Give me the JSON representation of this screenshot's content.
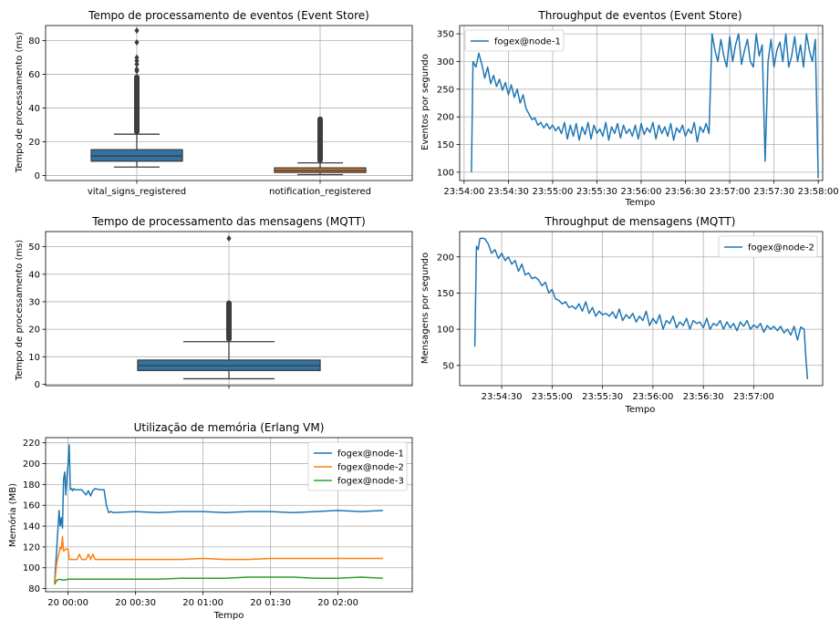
{
  "colors": {
    "blue": "#1f77b4",
    "orange": "#ff7f0e",
    "green": "#2ca02c",
    "box_blue": "#3274a1",
    "box_orange": "#e1812c"
  },
  "chart_data": [
    {
      "id": "c1",
      "type": "box",
      "title": "Tempo de processamento de eventos (Event Store)",
      "xlabel": "",
      "ylabel": "Tempo de processamento (ms)",
      "ylim": [
        -3,
        89
      ],
      "yticks": [
        0,
        20,
        40,
        60,
        80
      ],
      "categories": [
        "vital_signs_registered",
        "notification_registered"
      ],
      "boxes": [
        {
          "q1": 8.5,
          "median": 11.5,
          "q3": 15.3,
          "whislo": 5,
          "whishi": 24.5,
          "outlier_from": 24.5,
          "outlier_to": 60,
          "fliers": [
            62,
            63,
            66,
            68,
            70,
            79,
            86
          ],
          "color": "box_blue"
        },
        {
          "q1": 1.8,
          "median": 3.0,
          "q3": 4.5,
          "whislo": 0.5,
          "whishi": 7.5,
          "outlier_from": 7.5,
          "outlier_to": 35,
          "fliers": [],
          "color": "box_orange"
        }
      ]
    },
    {
      "id": "c2",
      "type": "line",
      "title": "Throughput de eventos (Event Store)",
      "xlabel": "Tempo",
      "ylabel": "Eventos por segundo",
      "xticks": [
        "23:54:00",
        "23:54:30",
        "23:55:00",
        "23:55:30",
        "23:56:00",
        "23:56:30",
        "23:57:00",
        "23:57:30",
        "23:58:00"
      ],
      "xrange": [
        -3,
        243
      ],
      "ylim": [
        85,
        365
      ],
      "yticks": [
        100,
        150,
        200,
        250,
        300,
        350
      ],
      "legend": "top-left",
      "series": [
        {
          "name": "fogex@node-1",
          "color": "blue",
          "x": [
            5,
            6,
            8,
            10,
            12,
            14,
            16,
            18,
            20,
            22,
            24,
            26,
            28,
            30,
            32,
            34,
            36,
            38,
            40,
            42,
            44,
            46,
            48,
            50,
            52,
            54,
            56,
            58,
            60,
            62,
            64,
            66,
            68,
            70,
            72,
            74,
            76,
            78,
            80,
            82,
            84,
            86,
            88,
            90,
            92,
            94,
            96,
            98,
            100,
            102,
            104,
            106,
            108,
            110,
            112,
            114,
            116,
            118,
            120,
            122,
            124,
            126,
            128,
            130,
            132,
            134,
            136,
            138,
            140,
            142,
            144,
            146,
            148,
            150,
            152,
            154,
            156,
            158,
            160,
            162,
            164,
            166,
            168,
            170,
            172,
            174,
            176,
            178,
            180,
            182,
            184,
            186,
            188,
            190,
            192,
            194,
            196,
            198,
            200,
            202,
            204,
            206,
            208,
            210,
            212,
            214,
            216,
            218,
            220,
            222,
            224,
            226,
            228,
            230,
            232,
            234,
            236,
            238,
            240
          ],
          "y": [
            100,
            300,
            290,
            315,
            295,
            270,
            290,
            260,
            275,
            255,
            268,
            248,
            262,
            240,
            258,
            235,
            250,
            225,
            240,
            215,
            205,
            195,
            198,
            185,
            190,
            180,
            188,
            178,
            185,
            175,
            182,
            170,
            190,
            160,
            185,
            165,
            188,
            158,
            182,
            168,
            190,
            160,
            185,
            170,
            178,
            165,
            190,
            158,
            182,
            170,
            188,
            162,
            185,
            170,
            178,
            165,
            185,
            160,
            188,
            168,
            180,
            172,
            190,
            160,
            185,
            170,
            182,
            165,
            188,
            158,
            180,
            172,
            185,
            165,
            178,
            170,
            190,
            155,
            182,
            172,
            188,
            170,
            350,
            320,
            300,
            340,
            310,
            290,
            345,
            300,
            330,
            350,
            295,
            320,
            340,
            300,
            290,
            350,
            310,
            330,
            120,
            300,
            340,
            290,
            320,
            335,
            300,
            350,
            290,
            310,
            345,
            300,
            330,
            290,
            350,
            320,
            300,
            340,
            90
          ]
        }
      ]
    },
    {
      "id": "c3",
      "type": "box",
      "title": "Tempo de processamento das mensagens (MQTT)",
      "xlabel": "",
      "ylabel": "Tempo de processamento (ms)",
      "ylim": [
        -0.5,
        55.5
      ],
      "yticks": [
        0,
        10,
        20,
        30,
        40,
        50
      ],
      "categories": [
        ""
      ],
      "boxes": [
        {
          "q1": 5,
          "median": 6.8,
          "q3": 8.8,
          "whislo": 2,
          "whishi": 15.5,
          "outlier_from": 15.5,
          "outlier_to": 30.5,
          "fliers": [
            53
          ],
          "color": "box_blue"
        }
      ]
    },
    {
      "id": "c4",
      "type": "line",
      "title": "Throughput de mensagens (MQTT)",
      "xlabel": "Tempo",
      "ylabel": "Mensagens por segundo",
      "xticks": [
        "23:54:30",
        "23:55:00",
        "23:55:30",
        "23:56:00",
        "23:56:30",
        "23:57:00"
      ],
      "xrange": [
        -9,
        207
      ],
      "ylim": [
        22,
        235
      ],
      "yticks": [
        50,
        100,
        150,
        200
      ],
      "legend": "top-right",
      "series": [
        {
          "name": "fogex@node-2",
          "color": "blue",
          "x": [
            0,
            1,
            2,
            3,
            4,
            6,
            8,
            10,
            12,
            14,
            16,
            18,
            20,
            22,
            24,
            26,
            28,
            30,
            32,
            34,
            36,
            38,
            40,
            42,
            44,
            46,
            48,
            50,
            52,
            54,
            56,
            58,
            60,
            62,
            64,
            66,
            68,
            70,
            72,
            74,
            76,
            78,
            80,
            82,
            84,
            86,
            88,
            90,
            92,
            94,
            96,
            98,
            100,
            102,
            104,
            106,
            108,
            110,
            112,
            114,
            116,
            118,
            120,
            122,
            124,
            126,
            128,
            130,
            132,
            134,
            136,
            138,
            140,
            142,
            144,
            146,
            148,
            150,
            152,
            154,
            156,
            158,
            160,
            162,
            164,
            166,
            168,
            170,
            172,
            174,
            176,
            178,
            180,
            182,
            184,
            186,
            188,
            190,
            192,
            194,
            196,
            197,
            198
          ],
          "y": [
            76,
            215,
            210,
            225,
            226,
            225,
            218,
            205,
            210,
            198,
            205,
            195,
            200,
            190,
            195,
            180,
            190,
            175,
            178,
            170,
            172,
            168,
            160,
            165,
            150,
            155,
            142,
            140,
            135,
            138,
            130,
            132,
            128,
            135,
            125,
            138,
            122,
            130,
            118,
            125,
            120,
            122,
            118,
            124,
            115,
            128,
            112,
            120,
            115,
            122,
            110,
            118,
            112,
            125,
            105,
            115,
            108,
            120,
            100,
            112,
            108,
            118,
            102,
            110,
            105,
            115,
            100,
            112,
            108,
            110,
            102,
            115,
            100,
            108,
            105,
            112,
            100,
            110,
            102,
            108,
            98,
            110,
            104,
            112,
            100,
            106,
            102,
            108,
            96,
            105,
            100,
            104,
            98,
            104,
            95,
            100,
            92,
            104,
            85,
            103,
            100,
            60,
            31
          ]
        }
      ]
    },
    {
      "id": "c5",
      "type": "line",
      "title": "Utilização de memória (Erlang VM)",
      "xlabel": "Tempo",
      "ylabel": "Memória (MB)",
      "xticks": [
        "20 00:00",
        "20 00:30",
        "20 01:00",
        "20 01:30",
        "20 02:00"
      ],
      "xrange": [
        -10,
        153
      ],
      "ylim": [
        77,
        225
      ],
      "yticks": [
        80,
        100,
        120,
        140,
        160,
        180,
        200,
        220
      ],
      "legend": "top-right",
      "series": [
        {
          "name": "fogex@node-1",
          "color": "blue",
          "x": [
            -6,
            -5,
            -4,
            -3.5,
            -3,
            -2.5,
            -2,
            -1.5,
            -1,
            -0.5,
            0,
            0.5,
            1,
            1.5,
            2,
            2.5,
            3,
            4,
            6,
            8,
            9,
            10,
            11,
            12,
            14,
            16,
            17,
            18,
            19,
            20,
            30,
            40,
            50,
            60,
            70,
            80,
            90,
            100,
            110,
            120,
            130,
            140
          ],
          "y": [
            86,
            120,
            155,
            140,
            148,
            138,
            185,
            192,
            170,
            188,
            200,
            218,
            175,
            176,
            174,
            176,
            175,
            175,
            175,
            170,
            174,
            169,
            174,
            176,
            175,
            175,
            160,
            153,
            154,
            153,
            154,
            153,
            154,
            154,
            153,
            154,
            154,
            153,
            154,
            155,
            154,
            155
          ]
        },
        {
          "name": "fogex@node-2",
          "color": "orange",
          "x": [
            -6,
            -5,
            -4,
            -3.5,
            -3,
            -2.5,
            -2,
            -1,
            0,
            0.5,
            1,
            4,
            5,
            6,
            7,
            8,
            9,
            10,
            11,
            12,
            14,
            16,
            18,
            20,
            30,
            40,
            50,
            60,
            70,
            80,
            90,
            100,
            110,
            120,
            130,
            140
          ],
          "y": [
            84,
            105,
            115,
            120,
            118,
            130,
            116,
            118,
            118,
            108,
            108,
            108,
            113,
            108,
            108,
            108,
            113,
            108,
            113,
            108,
            108,
            108,
            108,
            108,
            108,
            108,
            108,
            109,
            108,
            108,
            109,
            109,
            109,
            109,
            109,
            109
          ]
        },
        {
          "name": "fogex@node-3",
          "color": "green",
          "x": [
            -6,
            -5,
            -4,
            -2,
            0,
            10,
            20,
            30,
            40,
            50,
            60,
            70,
            80,
            90,
            100,
            110,
            120,
            130,
            140
          ],
          "y": [
            84,
            88,
            89,
            88,
            89,
            89,
            89,
            89,
            89,
            90,
            90,
            90,
            91,
            91,
            91,
            90,
            90,
            91,
            90
          ]
        }
      ]
    }
  ]
}
